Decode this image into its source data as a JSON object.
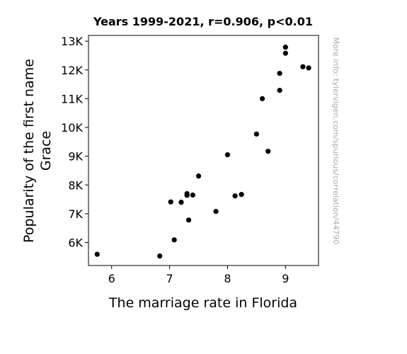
{
  "chart_data": {
    "type": "scatter",
    "title": "Years 1999-2021, r=0.906, p<0.01",
    "xlabel": "The marriage rate in Florida",
    "ylabel_lines": [
      "Popularity of the first name",
      "Grace"
    ],
    "xlim": [
      5.6,
      9.57
    ],
    "ylim": [
      5200,
      13200
    ],
    "x_ticks": [
      6,
      7,
      8,
      9
    ],
    "x_tick_labels": [
      "6",
      "7",
      "8",
      "9"
    ],
    "y_ticks": [
      6000,
      7000,
      8000,
      9000,
      10000,
      11000,
      12000,
      13000
    ],
    "y_tick_labels": [
      "6K",
      "7K",
      "8K",
      "9K",
      "10K",
      "11K",
      "12K",
      "13K"
    ],
    "grid": false,
    "marker_color": "#000000",
    "points": [
      {
        "x": 5.75,
        "y": 5590
      },
      {
        "x": 6.83,
        "y": 5530
      },
      {
        "x": 7.02,
        "y": 7410
      },
      {
        "x": 7.08,
        "y": 6090
      },
      {
        "x": 7.2,
        "y": 7400
      },
      {
        "x": 7.3,
        "y": 7700
      },
      {
        "x": 7.3,
        "y": 7640
      },
      {
        "x": 7.33,
        "y": 6780
      },
      {
        "x": 7.4,
        "y": 7650
      },
      {
        "x": 7.5,
        "y": 8310
      },
      {
        "x": 7.8,
        "y": 7080
      },
      {
        "x": 8.0,
        "y": 9050
      },
      {
        "x": 8.13,
        "y": 7620
      },
      {
        "x": 8.24,
        "y": 7670
      },
      {
        "x": 8.5,
        "y": 9770
      },
      {
        "x": 8.6,
        "y": 11000
      },
      {
        "x": 8.7,
        "y": 9170
      },
      {
        "x": 8.9,
        "y": 11880
      },
      {
        "x": 8.9,
        "y": 11290
      },
      {
        "x": 9.0,
        "y": 12790
      },
      {
        "x": 9.0,
        "y": 12580
      },
      {
        "x": 9.3,
        "y": 12110
      },
      {
        "x": 9.4,
        "y": 12070
      }
    ],
    "watermark": "More info: tylervigen.com/spurious/correlation/44790"
  }
}
